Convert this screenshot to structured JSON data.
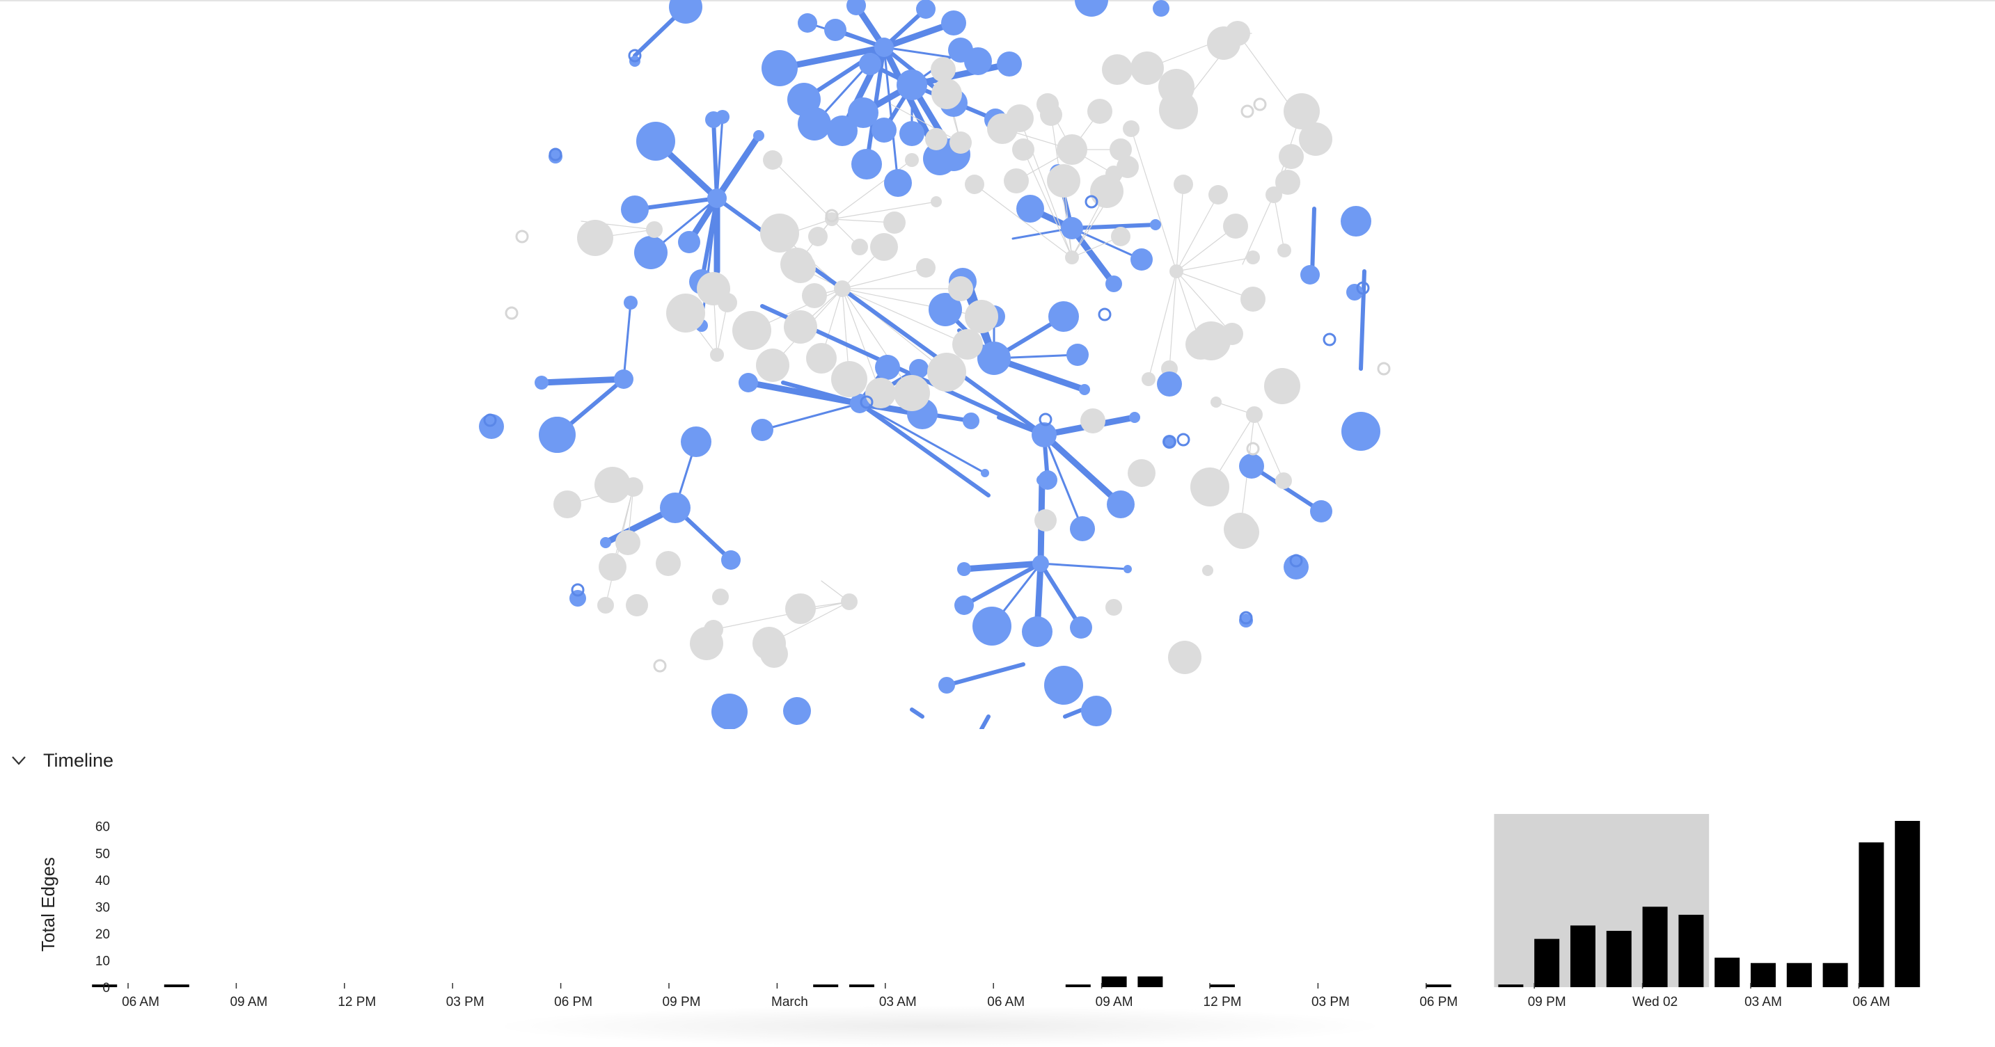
{
  "timeline": {
    "title": "Timeline",
    "selection_range": [
      "08 PM",
      "Wed 02 ~01:30 AM"
    ]
  },
  "colors": {
    "active_node": "#6f9af3",
    "active_edge": "#5a87e8",
    "inactive_node": "#dcdcdc",
    "inactive_edge": "#d6d6d6",
    "bar": "#000000",
    "selection": "#d4d4d4"
  },
  "chart_data": {
    "type": "bar",
    "ylabel": "Total Edges",
    "ylim": [
      0,
      62
    ],
    "y_ticks": [
      0,
      10,
      20,
      30,
      40,
      50,
      60
    ],
    "x_ticks": [
      "06 AM",
      "09 AM",
      "12 PM",
      "03 PM",
      "06 PM",
      "09 PM",
      "March",
      "03 AM",
      "06 AM",
      "09 AM",
      "12 PM",
      "03 PM",
      "06 PM",
      "09 PM",
      "Wed 02",
      "03 AM",
      "06 AM"
    ],
    "x_tick_hours": [
      6,
      9,
      12,
      15,
      18,
      21,
      24,
      27,
      30,
      33,
      36,
      39,
      42,
      45,
      48,
      51,
      54
    ],
    "bins": [
      {
        "hour": 5,
        "value": 1
      },
      {
        "hour": 7,
        "value": 1
      },
      {
        "hour": 25,
        "value": 1
      },
      {
        "hour": 26,
        "value": 1
      },
      {
        "hour": 32,
        "value": 1
      },
      {
        "hour": 33,
        "value": 4
      },
      {
        "hour": 34,
        "value": 4
      },
      {
        "hour": 36,
        "value": 1
      },
      {
        "hour": 42,
        "value": 1
      },
      {
        "hour": 44,
        "value": 1
      },
      {
        "hour": 45,
        "value": 18
      },
      {
        "hour": 46,
        "value": 23
      },
      {
        "hour": 47,
        "value": 21
      },
      {
        "hour": 48,
        "value": 30
      },
      {
        "hour": 49,
        "value": 27
      },
      {
        "hour": 50,
        "value": 11
      },
      {
        "hour": 51,
        "value": 9
      },
      {
        "hour": 52,
        "value": 9
      },
      {
        "hour": 53,
        "value": 9
      },
      {
        "hour": 54,
        "value": 54
      },
      {
        "hour": 55,
        "value": 62
      }
    ],
    "selection": {
      "from_hour": 44,
      "to_hour": 50
    }
  }
}
